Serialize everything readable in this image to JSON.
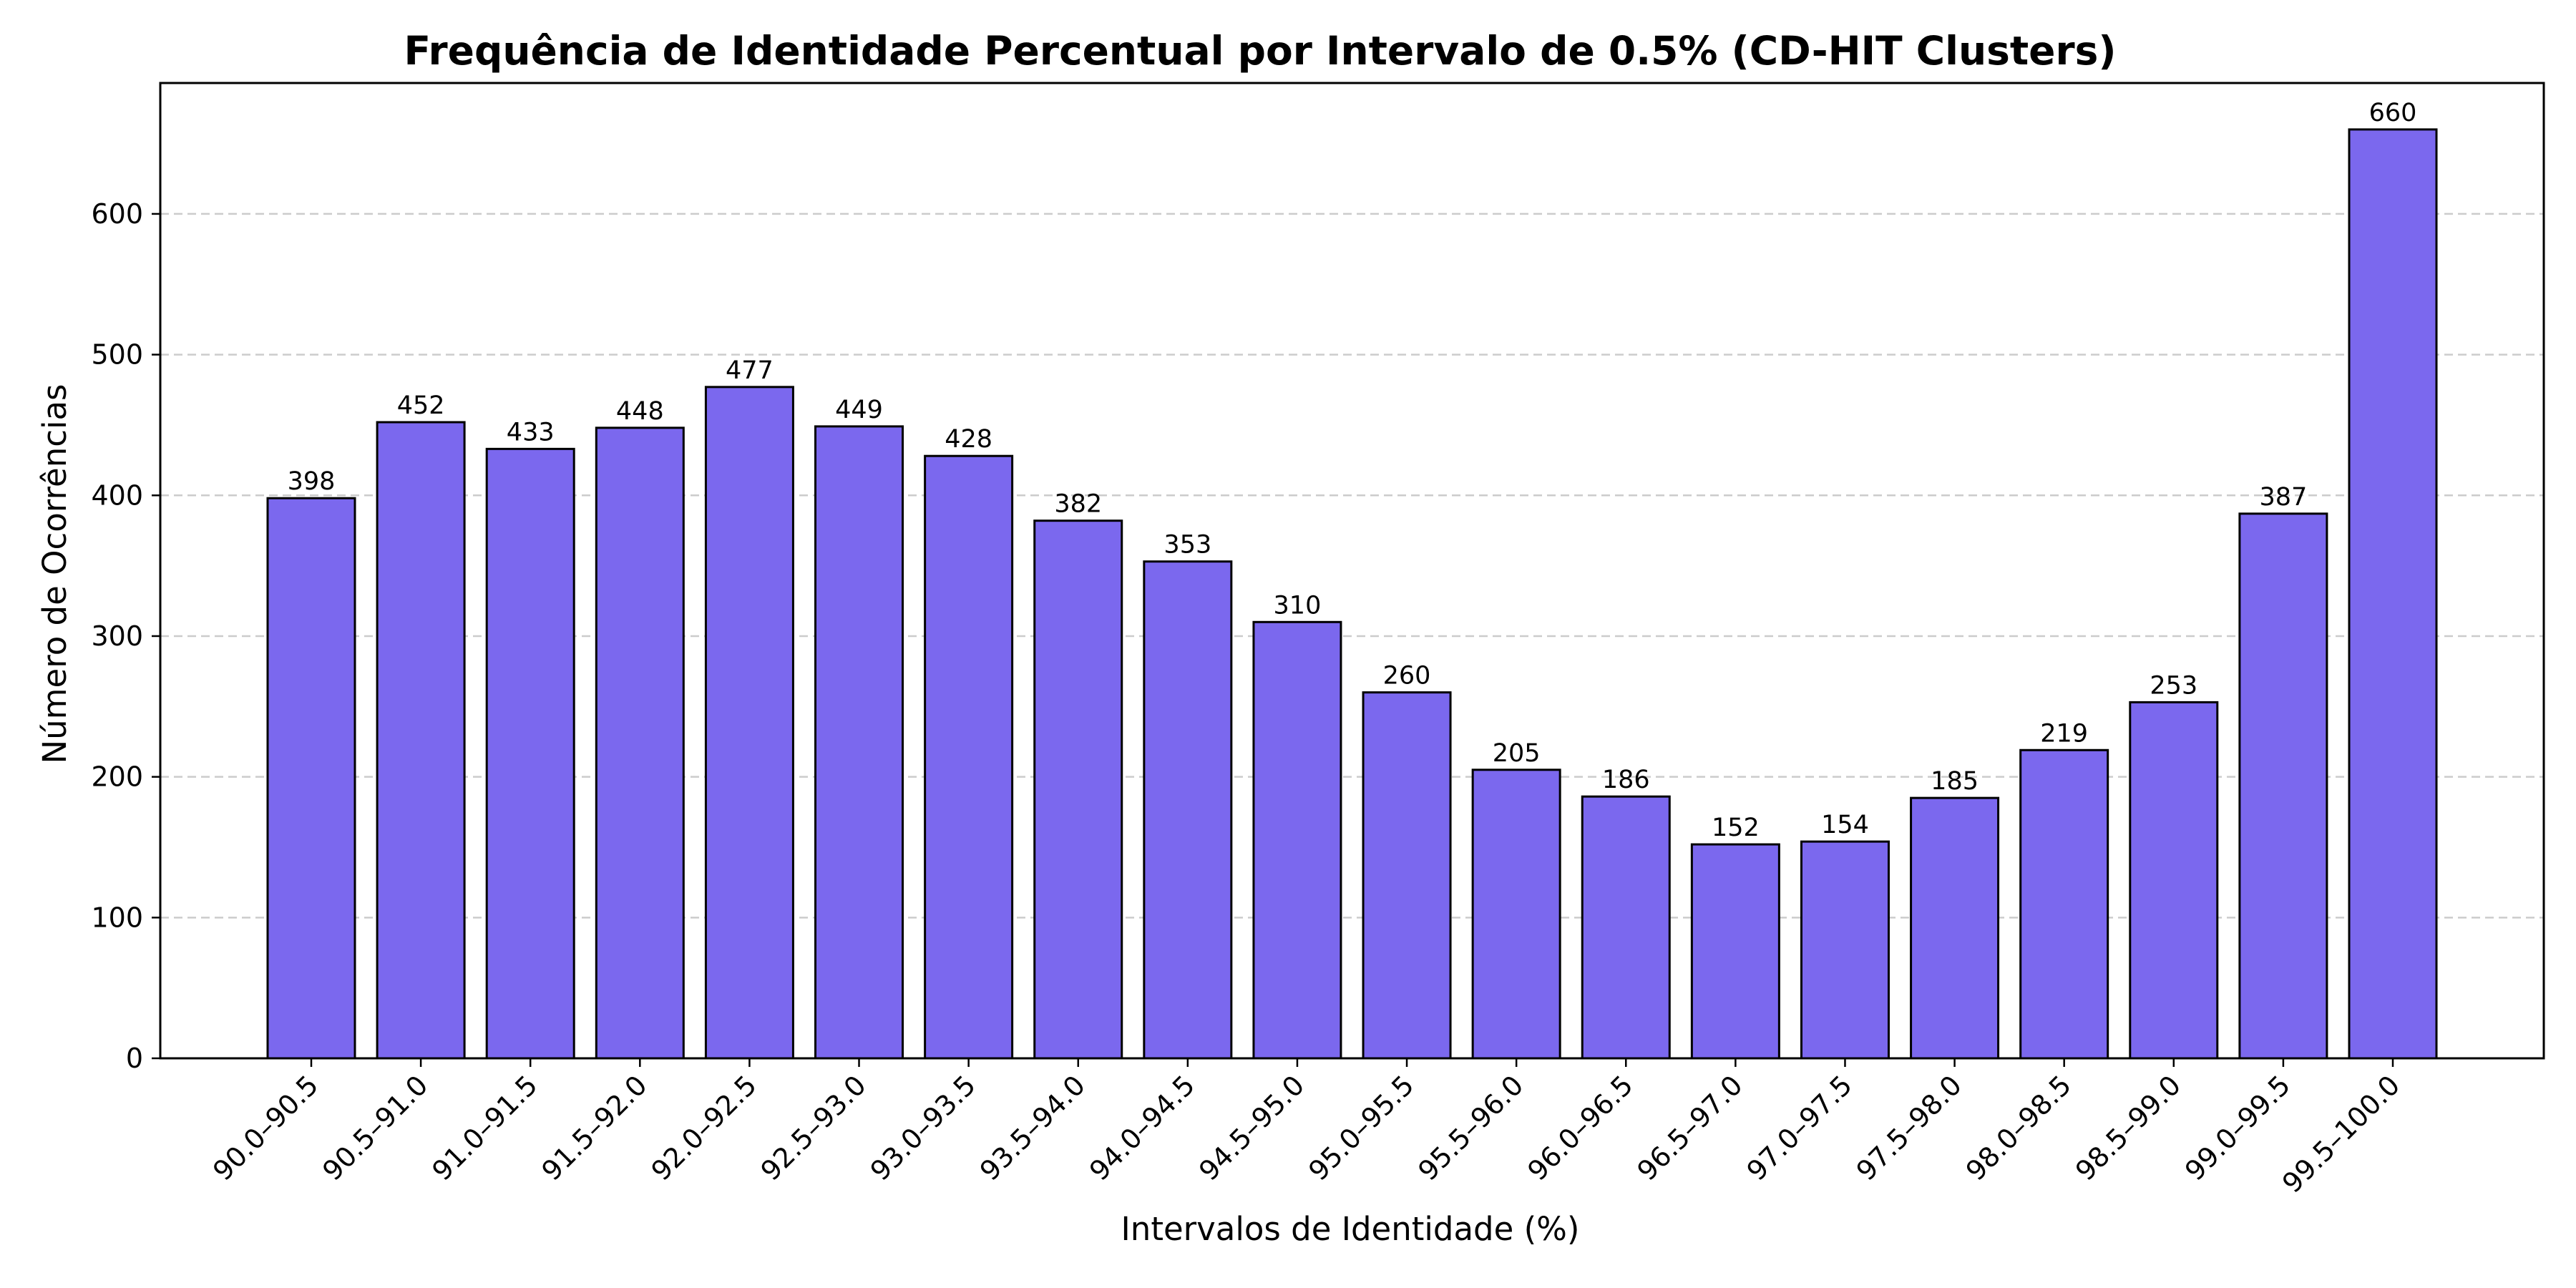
{
  "chart_data": {
    "type": "bar",
    "title": "Frequência de Identidade Percentual por Intervalo de 0.5% (CD-HIT Clusters)",
    "xlabel": "Intervalos de Identidade (%)",
    "ylabel": "Número de Ocorrências",
    "categories": [
      "90.0–90.5",
      "90.5–91.0",
      "91.0–91.5",
      "91.5–92.0",
      "92.0–92.5",
      "92.5–93.0",
      "93.0–93.5",
      "93.5–94.0",
      "94.0–94.5",
      "94.5–95.0",
      "95.0–95.5",
      "95.5–96.0",
      "96.0–96.5",
      "96.5–97.0",
      "97.0–97.5",
      "97.5–98.0",
      "98.0–98.5",
      "98.5–99.0",
      "99.0–99.5",
      "99.5–100.0"
    ],
    "values": [
      398,
      452,
      433,
      448,
      477,
      449,
      428,
      382,
      353,
      310,
      260,
      205,
      186,
      152,
      154,
      185,
      219,
      253,
      387,
      660
    ],
    "ylim": [
      0,
      693
    ],
    "yticks": [
      0,
      100,
      200,
      300,
      400,
      500,
      600
    ],
    "grid": "y-dashed",
    "bar_color": "#7b68ee",
    "bar_edge_color": "#000000",
    "grid_color": "#cccccc"
  }
}
